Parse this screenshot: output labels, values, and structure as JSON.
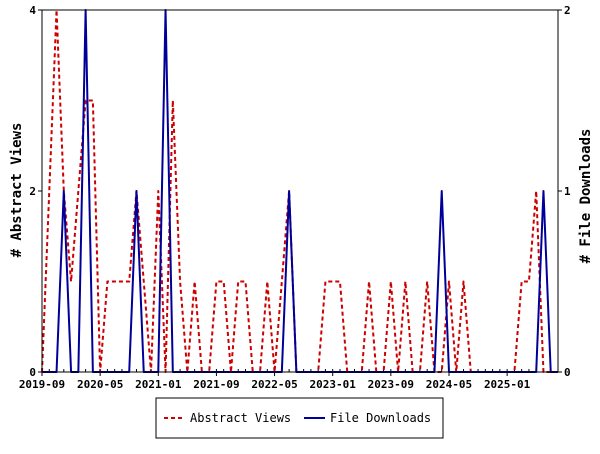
{
  "chart_data": {
    "type": "line",
    "xlabel": "",
    "ylabel": "# Abstract Views",
    "y2label": "# File Downloads",
    "ylim": [
      0,
      4
    ],
    "y2lim": [
      0,
      2
    ],
    "yticks": [
      "0",
      "2",
      "4"
    ],
    "y2ticks": [
      "0",
      "1",
      "2"
    ],
    "x_tick_labels": [
      "2019-09",
      "2020-05",
      "2021-01",
      "2021-09",
      "2022-05",
      "2023-01",
      "2023-09",
      "2024-05",
      "2025-01"
    ],
    "x_months": [
      "2019-09",
      "2019-10",
      "2019-11",
      "2019-12",
      "2020-01",
      "2020-02",
      "2020-03",
      "2020-04",
      "2020-05",
      "2020-06",
      "2020-07",
      "2020-08",
      "2020-09",
      "2020-10",
      "2020-11",
      "2020-12",
      "2021-01",
      "2021-02",
      "2021-03",
      "2021-04",
      "2021-05",
      "2021-06",
      "2021-07",
      "2021-08",
      "2021-09",
      "2021-10",
      "2021-11",
      "2021-12",
      "2022-01",
      "2022-02",
      "2022-03",
      "2022-04",
      "2022-05",
      "2022-06",
      "2022-07",
      "2022-08",
      "2022-09",
      "2022-10",
      "2022-11",
      "2022-12",
      "2023-01",
      "2023-02",
      "2023-03",
      "2023-04",
      "2023-05",
      "2023-06",
      "2023-07",
      "2023-08",
      "2023-09",
      "2023-10",
      "2023-11",
      "2023-12",
      "2024-01",
      "2024-02",
      "2024-03",
      "2024-04",
      "2024-05",
      "2024-06",
      "2024-07",
      "2024-08",
      "2024-09",
      "2024-10",
      "2024-11",
      "2024-12",
      "2025-01",
      "2025-02",
      "2025-03",
      "2025-04",
      "2025-05",
      "2025-06",
      "2025-07",
      "2025-08"
    ],
    "series": [
      {
        "name": "Abstract Views",
        "axis": "left",
        "color": "#cc0000",
        "style": "dashed",
        "values": [
          0,
          2,
          4,
          2,
          1,
          2,
          3,
          3,
          0,
          1,
          1,
          1,
          1,
          2,
          1,
          0,
          2,
          0,
          3,
          1,
          0,
          1,
          0,
          0,
          1,
          1,
          0,
          1,
          1,
          0,
          0,
          1,
          0,
          1,
          2,
          0,
          0,
          0,
          0,
          1,
          1,
          1,
          0,
          0,
          0,
          1,
          0,
          0,
          1,
          0,
          1,
          0,
          0,
          1,
          0,
          0,
          1,
          0,
          1,
          0,
          0,
          0,
          0,
          0,
          0,
          0,
          1,
          1,
          2,
          0,
          0,
          0
        ]
      },
      {
        "name": "File Downloads",
        "axis": "right",
        "color": "#000099",
        "style": "solid",
        "values": [
          0,
          0,
          0,
          1,
          0,
          0,
          2,
          0,
          0,
          0,
          0,
          0,
          0,
          1,
          0,
          0,
          0,
          2,
          0,
          0,
          0,
          0,
          0,
          0,
          0,
          0,
          0,
          0,
          0,
          0,
          0,
          0,
          0,
          0,
          1,
          0,
          0,
          0,
          0,
          0,
          0,
          0,
          0,
          0,
          0,
          0,
          0,
          0,
          0,
          0,
          0,
          0,
          0,
          0,
          0,
          1,
          0,
          0,
          0,
          0,
          0,
          0,
          0,
          0,
          0,
          0,
          0,
          0,
          0,
          1,
          0,
          0
        ]
      }
    ],
    "grid": false,
    "legend_position": "bottom-center"
  }
}
